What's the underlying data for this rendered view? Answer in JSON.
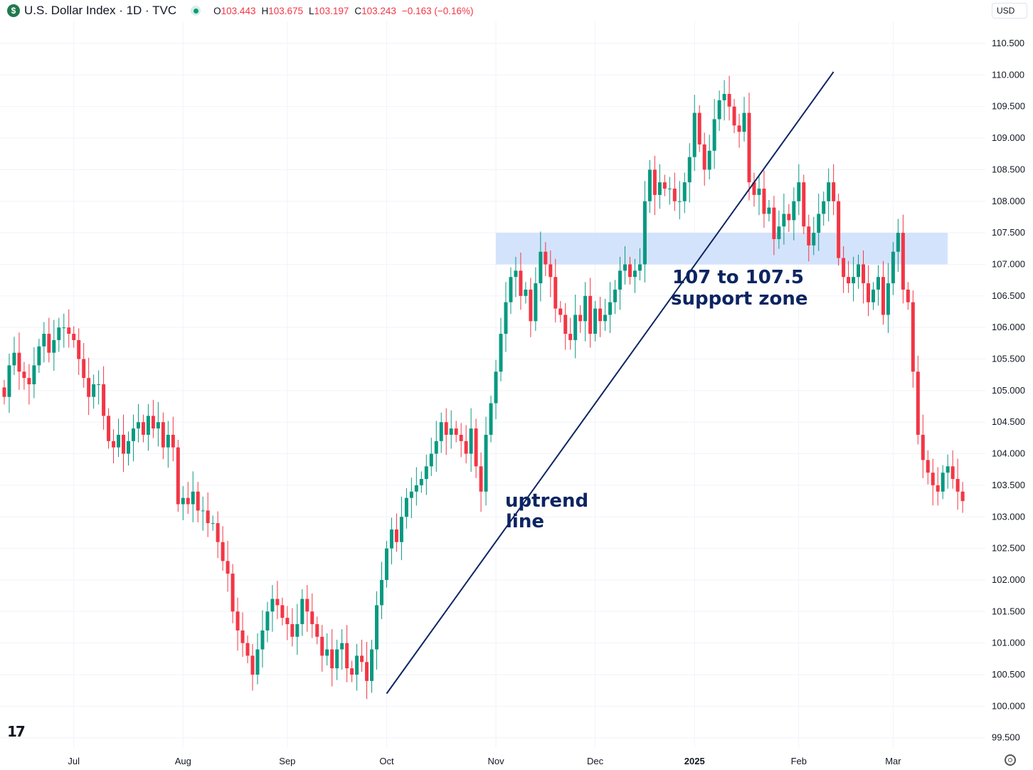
{
  "header": {
    "logo_symbol": "$",
    "title": "U.S. Dollar Index · 1D · TVC",
    "ohlc": [
      {
        "k": "O",
        "v": "103.443"
      },
      {
        "k": "H",
        "v": "103.675"
      },
      {
        "k": "L",
        "v": "103.197"
      },
      {
        "k": "C",
        "v": "103.243"
      },
      {
        "k": "",
        "v": "−0.163 (−0.16%)"
      }
    ],
    "currency": "USD"
  },
  "brand": {
    "logo_text": "17",
    "logo_icon": "tradingview-logo-icon"
  },
  "colors": {
    "up": "#089981",
    "down": "#f23645",
    "zone": "#cfe0fc",
    "line": "#0c2461"
  },
  "chart_data": {
    "type": "candlestick",
    "title": "U.S. Dollar Index · 1D · TVC",
    "y_ticks": [
      99.5,
      100.0,
      100.5,
      101.0,
      101.5,
      102.0,
      102.5,
      103.0,
      103.5,
      104.0,
      104.5,
      105.0,
      105.5,
      106.0,
      106.5,
      107.0,
      107.5,
      108.0,
      108.5,
      109.0,
      109.5,
      110.0,
      110.5
    ],
    "y_tick_labels": [
      "99.500",
      "100.000",
      "100.500",
      "101.000",
      "101.500",
      "102.000",
      "102.500",
      "103.000",
      "103.500",
      "104.000",
      "104.500",
      "105.000",
      "105.500",
      "106.000",
      "106.500",
      "107.000",
      "107.500",
      "108.000",
      "108.500",
      "109.000",
      "109.500",
      "110.000",
      "110.500"
    ],
    "ylim": [
      99.35,
      110.85
    ],
    "x_labels": [
      {
        "label": "Jul",
        "bar": 14,
        "bold": false
      },
      {
        "label": "Aug",
        "bar": 36,
        "bold": false
      },
      {
        "label": "Sep",
        "bar": 57,
        "bold": false
      },
      {
        "label": "Oct",
        "bar": 77,
        "bold": false
      },
      {
        "label": "Nov",
        "bar": 99,
        "bold": false
      },
      {
        "label": "Dec",
        "bar": 119,
        "bold": false
      },
      {
        "label": "2025",
        "bar": 139,
        "bold": true
      },
      {
        "label": "Feb",
        "bar": 160,
        "bold": false
      },
      {
        "label": "Mar",
        "bar": 179,
        "bold": false
      }
    ],
    "closes": [
      104.9,
      105.4,
      105.6,
      105.3,
      105.2,
      105.1,
      105.4,
      105.7,
      105.9,
      105.6,
      105.8,
      106.0,
      106.0,
      105.9,
      105.8,
      105.5,
      105.2,
      104.9,
      105.1,
      105.1,
      104.6,
      104.2,
      104.1,
      104.3,
      104.0,
      104.2,
      104.4,
      104.5,
      104.3,
      104.6,
      104.4,
      104.5,
      104.1,
      104.3,
      104.1,
      103.2,
      103.3,
      103.2,
      103.4,
      103.1,
      103.1,
      102.9,
      102.9,
      102.6,
      102.3,
      102.1,
      101.5,
      101.2,
      101.0,
      100.8,
      100.5,
      100.9,
      101.2,
      101.5,
      101.7,
      101.6,
      101.4,
      101.3,
      101.1,
      101.3,
      101.7,
      101.5,
      101.3,
      101.1,
      100.8,
      100.9,
      100.6,
      100.9,
      101.0,
      100.6,
      100.5,
      100.8,
      100.7,
      100.4,
      100.9,
      101.6,
      102.0,
      102.5,
      102.8,
      102.6,
      103.0,
      103.3,
      103.4,
      103.5,
      103.6,
      103.8,
      104.0,
      104.2,
      104.5,
      104.3,
      104.4,
      104.3,
      104.2,
      104.0,
      104.4,
      103.8,
      103.4,
      104.3,
      104.8,
      105.3,
      105.9,
      106.4,
      106.8,
      106.9,
      106.5,
      106.6,
      106.1,
      106.7,
      107.2,
      107.0,
      106.8,
      106.3,
      106.2,
      105.9,
      105.8,
      106.2,
      106.1,
      106.5,
      105.9,
      106.3,
      106.1,
      106.2,
      106.4,
      106.6,
      106.9,
      107.0,
      106.8,
      106.9,
      107.0,
      108.0,
      108.5,
      108.1,
      108.3,
      108.2,
      108.2,
      108.0,
      108.0,
      108.3,
      108.7,
      109.4,
      108.9,
      108.5,
      108.8,
      109.3,
      109.6,
      109.7,
      109.5,
      109.2,
      109.1,
      109.4,
      108.3,
      108.1,
      108.2,
      107.8,
      107.9,
      107.4,
      107.6,
      107.8,
      107.7,
      108.0,
      108.3,
      107.6,
      107.3,
      107.5,
      107.8,
      108.0,
      108.3,
      108.0,
      107.1,
      106.8,
      106.7,
      106.8,
      107.0,
      106.7,
      106.4,
      106.6,
      106.8,
      106.2,
      106.7,
      107.2,
      107.5,
      106.6,
      106.4,
      105.3,
      104.3,
      103.9,
      103.7,
      103.5,
      103.4,
      103.7,
      103.8,
      103.6,
      103.4,
      103.25
    ]
  },
  "annotations": {
    "support_zone": {
      "low": 107.0,
      "high": 107.5,
      "bar_start": 99,
      "bar_end": 190
    },
    "uptrend_line": {
      "bar_start": 77,
      "value_start": 100.2,
      "bar_end": 167,
      "value_end": 110.05
    },
    "support_label": [
      "107 to 107.5",
      "support zone"
    ],
    "uptrend_label": [
      "uptrend",
      "line"
    ]
  }
}
